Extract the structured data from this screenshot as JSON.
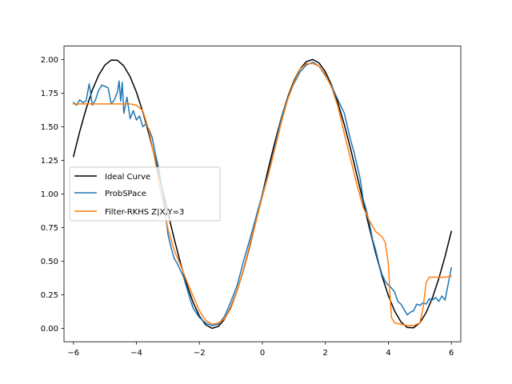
{
  "chart_data": {
    "type": "line",
    "title": "",
    "xlabel": "",
    "ylabel": "",
    "xlim": [
      -6.3,
      6.3
    ],
    "ylim": [
      -0.1,
      2.1
    ],
    "xticks": [
      -6,
      -4,
      -2,
      0,
      2,
      4,
      6
    ],
    "xtick_labels": [
      "−6",
      "−4",
      "−2",
      "0",
      "2",
      "4",
      "6"
    ],
    "yticks": [
      0.0,
      0.25,
      0.5,
      0.75,
      1.0,
      1.25,
      1.5,
      1.75,
      2.0
    ],
    "ytick_labels": [
      "0.00",
      "0.25",
      "0.50",
      "0.75",
      "1.00",
      "1.25",
      "1.50",
      "1.75",
      "2.00"
    ],
    "grid": false,
    "legend_position": "center-left",
    "series": [
      {
        "name": "Ideal Curve",
        "color": "#000000",
        "x": [
          -6.0,
          -5.8,
          -5.6,
          -5.4,
          -5.2,
          -5.0,
          -4.8,
          -4.6,
          -4.4,
          -4.2,
          -4.0,
          -3.8,
          -3.6,
          -3.4,
          -3.2,
          -3.0,
          -2.8,
          -2.6,
          -2.4,
          -2.2,
          -2.0,
          -1.8,
          -1.6,
          -1.4,
          -1.2,
          -1.0,
          -0.8,
          -0.6,
          -0.4,
          -0.2,
          0.0,
          0.2,
          0.4,
          0.6,
          0.8,
          1.0,
          1.2,
          1.4,
          1.6,
          1.8,
          2.0,
          2.2,
          2.4,
          2.6,
          2.8,
          3.0,
          3.2,
          3.4,
          3.6,
          3.8,
          4.0,
          4.2,
          4.4,
          4.6,
          4.8,
          5.0,
          5.2,
          5.4,
          5.6,
          5.8,
          6.0
        ],
        "y": [
          1.279,
          1.465,
          1.631,
          1.773,
          1.883,
          1.959,
          1.996,
          1.994,
          1.952,
          1.872,
          1.757,
          1.612,
          1.443,
          1.256,
          1.058,
          0.859,
          0.665,
          0.485,
          0.325,
          0.192,
          0.091,
          0.026,
          0.0,
          0.014,
          0.068,
          0.159,
          0.283,
          0.435,
          0.611,
          0.801,
          1.0,
          1.199,
          1.389,
          1.565,
          1.717,
          1.841,
          1.932,
          1.985,
          2.0,
          1.974,
          1.909,
          1.808,
          1.675,
          1.516,
          1.335,
          1.141,
          0.942,
          0.744,
          0.557,
          0.388,
          0.243,
          0.128,
          0.048,
          0.006,
          0.004,
          0.041,
          0.117,
          0.228,
          0.369,
          0.535,
          0.721
        ]
      },
      {
        "name": "ProbSPace",
        "color": "#1f77b4",
        "x": [
          -6.0,
          -5.9,
          -5.8,
          -5.7,
          -5.6,
          -5.5,
          -5.4,
          -5.3,
          -5.2,
          -5.1,
          -5.0,
          -4.9,
          -4.8,
          -4.7,
          -4.6,
          -4.55,
          -4.5,
          -4.45,
          -4.4,
          -4.3,
          -4.2,
          -4.1,
          -4.0,
          -3.9,
          -3.8,
          -3.7,
          -3.6,
          -3.5,
          -3.4,
          -3.3,
          -3.2,
          -3.1,
          -3.0,
          -2.9,
          -2.8,
          -2.7,
          -2.6,
          -2.5,
          -2.4,
          -2.3,
          -2.2,
          -2.0,
          -1.8,
          -1.6,
          -1.4,
          -1.2,
          -1.0,
          -0.8,
          -0.6,
          -0.4,
          -0.2,
          0.0,
          0.2,
          0.4,
          0.6,
          0.8,
          1.0,
          1.2,
          1.4,
          1.6,
          1.8,
          2.0,
          2.2,
          2.4,
          2.6,
          2.8,
          2.9,
          3.0,
          3.1,
          3.2,
          3.3,
          3.4,
          3.5,
          3.6,
          3.7,
          3.8,
          3.9,
          4.0,
          4.1,
          4.2,
          4.3,
          4.4,
          4.5,
          4.6,
          4.7,
          4.8,
          4.9,
          5.0,
          5.1,
          5.2,
          5.3,
          5.4,
          5.5,
          5.6,
          5.7,
          5.8,
          5.9,
          6.0
        ],
        "y": [
          1.68,
          1.66,
          1.7,
          1.68,
          1.69,
          1.82,
          1.66,
          1.7,
          1.77,
          1.81,
          1.8,
          1.79,
          1.67,
          1.7,
          1.76,
          1.84,
          1.69,
          1.83,
          1.6,
          1.72,
          1.56,
          1.62,
          1.55,
          1.58,
          1.5,
          1.52,
          1.48,
          1.42,
          1.3,
          1.2,
          1.06,
          0.9,
          0.7,
          0.6,
          0.52,
          0.48,
          0.43,
          0.38,
          0.3,
          0.22,
          0.15,
          0.08,
          0.04,
          0.02,
          0.03,
          0.09,
          0.2,
          0.32,
          0.5,
          0.66,
          0.83,
          1.0,
          1.16,
          1.36,
          1.56,
          1.71,
          1.82,
          1.91,
          1.96,
          1.98,
          1.95,
          1.88,
          1.8,
          1.7,
          1.6,
          1.4,
          1.32,
          1.22,
          1.12,
          0.96,
          0.88,
          0.78,
          0.66,
          0.58,
          0.48,
          0.4,
          0.35,
          0.32,
          0.3,
          0.27,
          0.2,
          0.18,
          0.14,
          0.1,
          0.12,
          0.13,
          0.18,
          0.17,
          0.19,
          0.18,
          0.22,
          0.21,
          0.23,
          0.2,
          0.24,
          0.21,
          0.33,
          0.45
        ]
      },
      {
        "name": "Filter-RKHS Z|X,Y=3",
        "color": "#ff7f0e",
        "x": [
          -6.0,
          -5.8,
          -5.6,
          -5.4,
          -5.2,
          -5.0,
          -4.8,
          -4.6,
          -4.4,
          -4.2,
          -4.0,
          -3.8,
          -3.6,
          -3.4,
          -3.2,
          -3.0,
          -2.8,
          -2.6,
          -2.4,
          -2.2,
          -2.0,
          -1.8,
          -1.6,
          -1.4,
          -1.2,
          -1.0,
          -0.8,
          -0.6,
          -0.4,
          -0.2,
          0.0,
          0.2,
          0.4,
          0.6,
          0.8,
          1.0,
          1.2,
          1.4,
          1.6,
          1.8,
          2.0,
          2.2,
          2.4,
          2.6,
          2.8,
          3.0,
          3.2,
          3.4,
          3.6,
          3.8,
          3.9,
          4.0,
          4.05,
          4.1,
          4.2,
          4.4,
          4.6,
          4.8,
          4.9,
          5.0,
          5.1,
          5.2,
          5.3,
          5.4,
          5.6,
          5.8,
          6.0
        ],
        "y": [
          1.67,
          1.67,
          1.67,
          1.67,
          1.67,
          1.67,
          1.67,
          1.67,
          1.67,
          1.67,
          1.66,
          1.62,
          1.47,
          1.24,
          0.98,
          0.74,
          0.58,
          0.47,
          0.35,
          0.24,
          0.13,
          0.06,
          0.03,
          0.04,
          0.07,
          0.15,
          0.28,
          0.44,
          0.62,
          0.8,
          0.98,
          1.15,
          1.34,
          1.53,
          1.7,
          1.83,
          1.93,
          1.97,
          1.97,
          1.95,
          1.89,
          1.79,
          1.65,
          1.45,
          1.26,
          1.07,
          0.9,
          0.8,
          0.72,
          0.68,
          0.64,
          0.48,
          0.25,
          0.08,
          0.04,
          0.03,
          0.02,
          0.02,
          0.03,
          0.04,
          0.15,
          0.34,
          0.38,
          0.38,
          0.38,
          0.38,
          0.39
        ]
      }
    ]
  }
}
